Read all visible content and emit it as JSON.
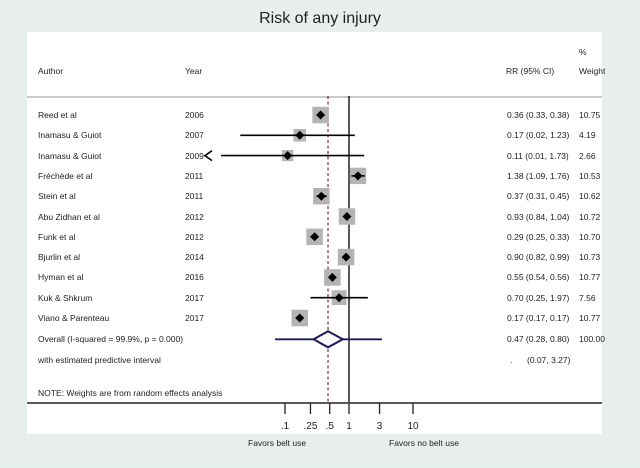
{
  "chart_data": {
    "type": "forest",
    "title": "Risk of any injury",
    "columns": {
      "author": "Author",
      "year": "Year",
      "estimate": "RR (95% CI)",
      "weight_top": "%",
      "weight": "Weight"
    },
    "xscale": "log",
    "xticks": [
      ".1",
      ".25",
      ".5",
      "1",
      "3",
      "10"
    ],
    "xtick_values": [
      0.1,
      0.25,
      0.5,
      1,
      3,
      10
    ],
    "xlim": [
      0.1,
      10
    ],
    "left_label": "Favors belt use",
    "right_label": "Favors no belt use",
    "null_line": 1,
    "pooled_line": 0.47,
    "studies": [
      {
        "author": "Reed et al",
        "year": "2006",
        "rr": 0.36,
        "lo": 0.33,
        "hi": 0.38,
        "ci_text": "0.36 (0.33, 0.38)",
        "weight": 10.75,
        "weight_text": "10.75"
      },
      {
        "author": "Inamasu & Guiot",
        "year": "2007",
        "rr": 0.17,
        "lo": 0.02,
        "hi": 1.23,
        "ci_text": "0.17 (0.02, 1.23)",
        "weight": 4.19,
        "weight_text": "4.19"
      },
      {
        "author": "Inamasu & Guiot",
        "year": "2009",
        "rr": 0.11,
        "lo": 0.01,
        "hi": 1.73,
        "ci_text": "0.11 (0.01, 1.73)",
        "weight": 2.66,
        "weight_text": "2.66",
        "arrow_left": true
      },
      {
        "author": "Fréchède et al",
        "year": "2011",
        "rr": 1.38,
        "lo": 1.09,
        "hi": 1.76,
        "ci_text": "1.38 (1.09, 1.76)",
        "weight": 10.53,
        "weight_text": "10.53"
      },
      {
        "author": "Stein et al",
        "year": "2011",
        "rr": 0.37,
        "lo": 0.31,
        "hi": 0.45,
        "ci_text": "0.37 (0.31, 0.45)",
        "weight": 10.62,
        "weight_text": "10.62"
      },
      {
        "author": "Abu Zidhan et al",
        "year": "2012",
        "rr": 0.93,
        "lo": 0.84,
        "hi": 1.04,
        "ci_text": "0.93 (0.84, 1.04)",
        "weight": 10.72,
        "weight_text": "10.72"
      },
      {
        "author": "Funk et al",
        "year": "2012",
        "rr": 0.29,
        "lo": 0.25,
        "hi": 0.33,
        "ci_text": "0.29 (0.25, 0.33)",
        "weight": 10.7,
        "weight_text": "10.70"
      },
      {
        "author": "Bjurlin et al",
        "year": "2014",
        "rr": 0.9,
        "lo": 0.82,
        "hi": 0.99,
        "ci_text": "0.90 (0.82, 0.99)",
        "weight": 10.73,
        "weight_text": "10.73"
      },
      {
        "author": "Hyman et al",
        "year": "2016",
        "rr": 0.55,
        "lo": 0.54,
        "hi": 0.56,
        "ci_text": "0.55 (0.54, 0.56)",
        "weight": 10.77,
        "weight_text": "10.77"
      },
      {
        "author": "Kuk & Shkrum",
        "year": "2017",
        "rr": 0.7,
        "lo": 0.25,
        "hi": 1.97,
        "ci_text": "0.70 (0.25, 1.97)",
        "weight": 7.56,
        "weight_text": "7.56"
      },
      {
        "author": "Viano & Parenteau",
        "year": "2017",
        "rr": 0.17,
        "lo": 0.17,
        "hi": 0.17,
        "ci_text": "0.17 (0.17, 0.17)",
        "weight": 10.77,
        "weight_text": "10.77"
      }
    ],
    "overall": {
      "label": "Overall  (I-squared = 99.9%, p = 0.000)",
      "rr": 0.47,
      "lo": 0.28,
      "hi": 0.8,
      "ci_text": "0.47 (0.28, 0.80)",
      "weight_text": "100.00"
    },
    "predictive": {
      "label": "with estimated predictive interval",
      "lo": 0.07,
      "hi": 3.27,
      "dot": ".",
      "ci_text": "(0.07, 3.27)"
    },
    "note": "NOTE: Weights are from random effects analysis",
    "colors": {
      "box": "#b4b4b4",
      "marker": "#000000",
      "ci": "#000000",
      "overall": "#1e1a5e",
      "pooled_line": "#8b2a3a",
      "null_line": "#000000"
    }
  }
}
